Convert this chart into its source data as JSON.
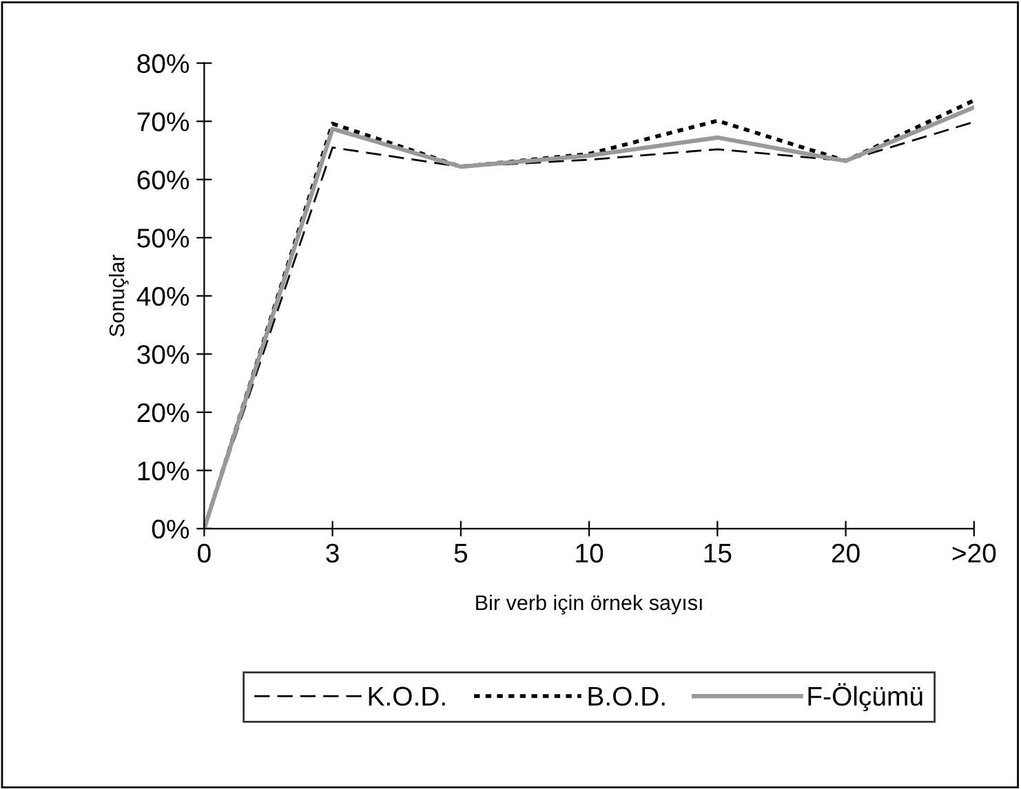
{
  "chart_data": {
    "type": "line",
    "xlabel": "Bir verb için örnek sayısı",
    "ylabel": "Sonuçlar",
    "categories": [
      "0",
      "3",
      "5",
      "10",
      "15",
      "20",
      ">20"
    ],
    "series": [
      {
        "name": "K.O.D.",
        "color": "#000000",
        "line_style": "dashed",
        "values": [
          0,
          65.5,
          62.2,
          63.4,
          65.2,
          63.2,
          69.9
        ]
      },
      {
        "name": "B.O.D.",
        "color": "#000000",
        "line_style": "dotted",
        "values": [
          0,
          69.6,
          62.2,
          64.4,
          70.1,
          63.2,
          73.6
        ]
      },
      {
        "name": "F-Ölçümü",
        "color": "#999999",
        "line_style": "solid",
        "values": [
          0,
          68.7,
          62.2,
          64.1,
          67.2,
          63.2,
          72.4
        ]
      }
    ],
    "ylim": [
      0,
      80
    ],
    "yticks": [
      {
        "value": 0,
        "label": "0%"
      },
      {
        "value": 10,
        "label": "10%"
      },
      {
        "value": 20,
        "label": "20%"
      },
      {
        "value": 30,
        "label": "30%"
      },
      {
        "value": 40,
        "label": "40%"
      },
      {
        "value": 50,
        "label": "50%"
      },
      {
        "value": 60,
        "label": "60%"
      },
      {
        "value": 70,
        "label": "70%"
      },
      {
        "value": 80,
        "label": "80%"
      }
    ],
    "grid": false,
    "legend": "bottom",
    "marker": "none"
  }
}
